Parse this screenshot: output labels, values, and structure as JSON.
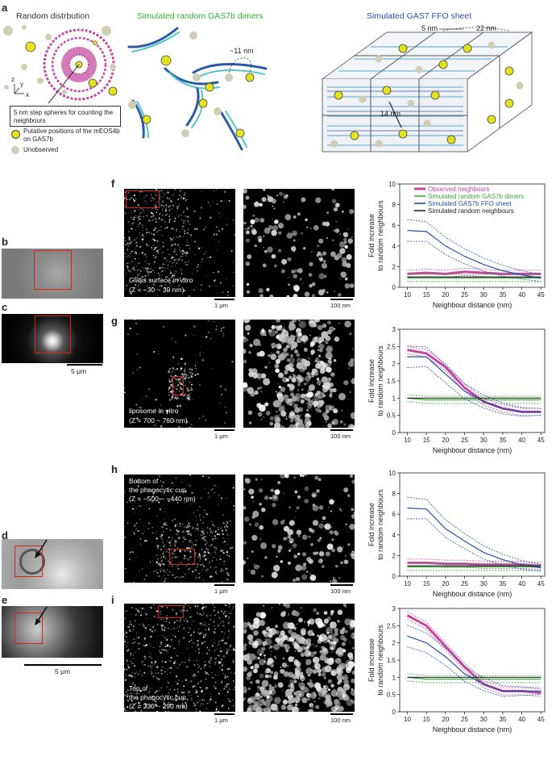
{
  "panels": {
    "a": {
      "label": "a",
      "random_title": "Random distrbution",
      "dimers_title": "Simulated random GAS7b dimers",
      "ffo_title": "Simulated GAS7 FFO sheet",
      "dimer_distance": "~11 nm",
      "ffo_d1": "5 nm",
      "ffo_d2": "22 nm",
      "ffo_d3": "14 nm",
      "axes": {
        "z": "z",
        "y": "y",
        "x": "x"
      },
      "legend_box": "5 nm step spheres for counting the neighbours",
      "legend_items": [
        {
          "text": "Putative positions of the mEOS4b on GAS7b",
          "color": "#e4e41e"
        },
        {
          "text": "Unobserved",
          "color": "#cfcdb4"
        }
      ],
      "colors": {
        "dimer_title": "#3aa83c",
        "ffo_title": "#2a4fa8",
        "ring": "#c5479e"
      }
    },
    "b": {
      "label": "b"
    },
    "c": {
      "label": "c",
      "scalebar": "5 μm"
    },
    "d": {
      "label": "d"
    },
    "e": {
      "label": "e",
      "scalebar": "5 μm"
    },
    "f": {
      "label": "f",
      "caption_line1": "Glass surface in vitro",
      "caption_line2": "(Z = −30 ~ 30 nm)",
      "scale_left": "1 μm",
      "scale_right": "100 nm"
    },
    "g": {
      "label": "g",
      "caption_line1": "liposome in vitro",
      "caption_line2": "(Z = 700 ~ 760 nm)",
      "scale_left": "1 μm",
      "scale_right": "100 nm"
    },
    "h": {
      "label": "h",
      "caption_line1": "Bottom of",
      "caption_line2": "the phagocytic cup",
      "caption_line3": "(Z = −500 ~ −440 nm)",
      "scale_left": "1 μm",
      "scale_right": "100 nm"
    },
    "i": {
      "label": "i",
      "caption_line1": "Top of",
      "caption_line2": "the phagocytic cup",
      "caption_line3": "(Z = 230 ~ 290 nm)",
      "scale_left": "1 μm",
      "scale_right": "100 nm"
    }
  },
  "chart_data": [
    {
      "type": "line",
      "panel": "f",
      "xlabel": "Neighbour distance (nm)",
      "ylabel": "Fold increase to random neighbours",
      "x": [
        10,
        15,
        20,
        25,
        30,
        35,
        40,
        45
      ],
      "xlim": [
        8,
        46
      ],
      "ylim": [
        0,
        10
      ],
      "yticks": [
        "0",
        "2",
        "4",
        "6",
        "8",
        "10"
      ],
      "legend": "top-right",
      "series": [
        {
          "name": "Observed neighbours",
          "color": "#c5479e",
          "values": [
            1.3,
            1.4,
            1.3,
            1.5,
            1.4,
            1.3,
            1.3,
            1.3
          ]
        },
        {
          "name": "Simulated random GAS7b dimers",
          "color": "#3aa83c",
          "values": [
            0.9,
            0.9,
            0.9,
            0.9,
            0.9,
            0.9,
            0.9,
            0.9
          ]
        },
        {
          "name": "Simulated GAS7b FFO sheet",
          "color": "#2a4fa8",
          "values": [
            5.5,
            5.4,
            4.0,
            3.0,
            2.2,
            1.6,
            1.2,
            0.9
          ]
        },
        {
          "name": "Simulated random neighbours",
          "color": "#222222",
          "values": [
            1.0,
            1.0,
            1.0,
            1.0,
            1.0,
            1.0,
            1.0,
            1.0
          ]
        }
      ]
    },
    {
      "type": "line",
      "panel": "g",
      "xlabel": "Neighbour distance (nm)",
      "ylabel": "Fold increase to random neighbours",
      "x": [
        10,
        15,
        20,
        25,
        30,
        35,
        40,
        45
      ],
      "xlim": [
        8,
        46
      ],
      "ylim": [
        0,
        3
      ],
      "yticks": [
        "0",
        "0.5",
        "1",
        "1.5",
        "2",
        "2.5",
        "3"
      ],
      "series": [
        {
          "color": "#c5479e",
          "values": [
            2.4,
            2.3,
            1.9,
            1.3,
            0.9,
            0.7,
            0.6,
            0.6
          ]
        },
        {
          "color": "#3aa83c",
          "values": [
            1.0,
            0.95,
            0.95,
            0.95,
            0.95,
            0.95,
            0.95,
            0.95
          ]
        },
        {
          "color": "#2a4fa8",
          "values": [
            2.2,
            2.2,
            1.7,
            1.2,
            0.9,
            0.7,
            0.6,
            0.6
          ]
        },
        {
          "color": "#222222",
          "values": [
            1.0,
            1.0,
            1.0,
            1.0,
            1.0,
            1.0,
            1.0,
            1.0
          ]
        }
      ]
    },
    {
      "type": "line",
      "panel": "h",
      "xlabel": "Neighbour distance (nm)",
      "ylabel": "Fold increase to random neighbours",
      "x": [
        10,
        15,
        20,
        25,
        30,
        35,
        40,
        45
      ],
      "xlim": [
        8,
        46
      ],
      "ylim": [
        0,
        10
      ],
      "yticks": [
        "0",
        "2",
        "4",
        "6",
        "8",
        "10"
      ],
      "series": [
        {
          "color": "#c5479e",
          "values": [
            1.3,
            1.3,
            1.2,
            1.2,
            1.1,
            1.1,
            1.1,
            1.0
          ]
        },
        {
          "color": "#3aa83c",
          "values": [
            0.9,
            0.9,
            0.9,
            0.9,
            0.9,
            0.9,
            0.9,
            0.9
          ]
        },
        {
          "color": "#2a4fa8",
          "values": [
            6.6,
            6.5,
            4.6,
            3.4,
            2.3,
            1.6,
            1.1,
            0.8
          ]
        },
        {
          "color": "#222222",
          "values": [
            1.0,
            1.0,
            1.0,
            1.0,
            1.0,
            1.0,
            1.0,
            1.0
          ]
        }
      ]
    },
    {
      "type": "line",
      "panel": "i",
      "xlabel": "Neighbour distance (nm)",
      "ylabel": "Fold increase to random neighbours",
      "x": [
        10,
        15,
        20,
        25,
        30,
        35,
        40,
        45
      ],
      "xlim": [
        8,
        46
      ],
      "ylim": [
        0,
        3
      ],
      "yticks": [
        "0",
        "0.5",
        "1",
        "1.5",
        "2",
        "2.5",
        "3"
      ],
      "series": [
        {
          "color": "#c5479e",
          "values": [
            2.8,
            2.5,
            1.9,
            1.3,
            0.8,
            0.6,
            0.6,
            0.55
          ]
        },
        {
          "color": "#3aa83c",
          "values": [
            1.0,
            0.95,
            0.95,
            0.95,
            0.95,
            0.95,
            0.95,
            0.95
          ]
        },
        {
          "color": "#2a4fa8",
          "values": [
            2.2,
            2.0,
            1.6,
            1.1,
            0.8,
            0.6,
            0.6,
            0.6
          ]
        },
        {
          "color": "#222222",
          "values": [
            1.0,
            1.0,
            1.0,
            1.0,
            1.0,
            1.0,
            1.0,
            1.0
          ]
        }
      ]
    }
  ]
}
